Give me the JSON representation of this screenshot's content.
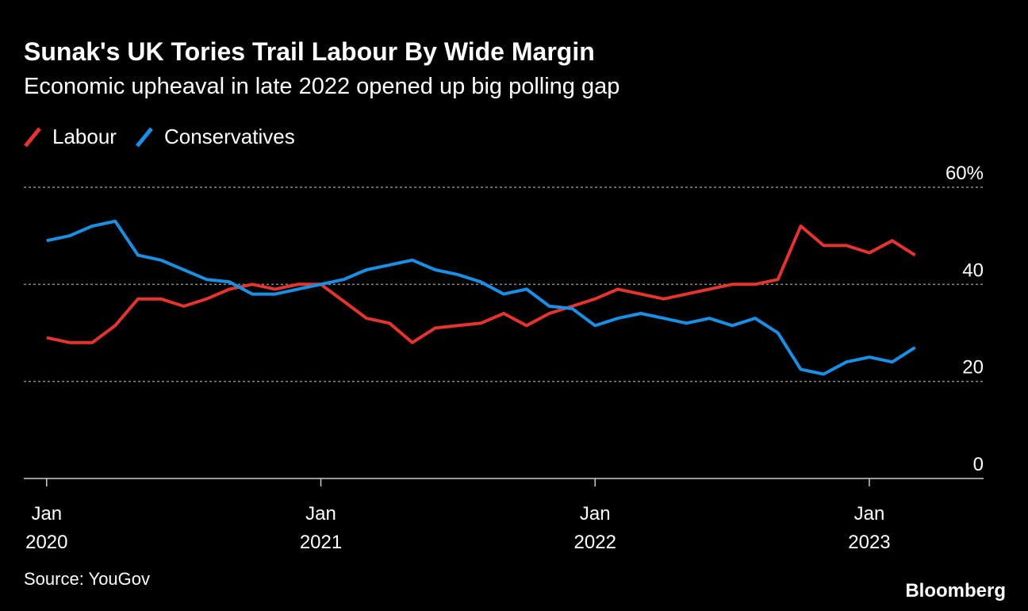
{
  "chart_data": {
    "type": "line",
    "title": "Sunak's UK Tories Trail Labour By Wide Margin",
    "subtitle": "Economic upheaval in late 2022 opened up big polling gap",
    "source": "Source: YouGov",
    "brand": "Bloomberg",
    "x": [
      "2020-01",
      "2020-02",
      "2020-03",
      "2020-04",
      "2020-05",
      "2020-06",
      "2020-07",
      "2020-08",
      "2020-09",
      "2020-10",
      "2020-11",
      "2020-12",
      "2021-01",
      "2021-02",
      "2021-03",
      "2021-04",
      "2021-05",
      "2021-06",
      "2021-07",
      "2021-08",
      "2021-09",
      "2021-10",
      "2021-11",
      "2021-12",
      "2022-01",
      "2022-02",
      "2022-03",
      "2022-04",
      "2022-05",
      "2022-06",
      "2022-07",
      "2022-08",
      "2022-09",
      "2022-10",
      "2022-11",
      "2022-12",
      "2023-01",
      "2023-02",
      "2023-03"
    ],
    "series": [
      {
        "name": "Labour",
        "color": "#e3342f",
        "values": [
          29,
          28,
          28,
          31.5,
          37,
          37,
          35.5,
          37,
          39,
          40,
          39,
          40,
          40,
          36.5,
          33,
          32,
          28,
          31,
          31.5,
          32,
          34,
          31.5,
          34,
          35.5,
          37,
          39,
          38,
          37,
          38,
          39,
          40,
          40,
          41,
          52,
          48,
          48,
          46.5,
          49,
          46
        ]
      },
      {
        "name": "Conservatives",
        "color": "#1a8fe3",
        "values": [
          49,
          50,
          52,
          53,
          46,
          45,
          43,
          41,
          40.5,
          38,
          38,
          39,
          40,
          41,
          43,
          44,
          45,
          43,
          42,
          40.5,
          38,
          39,
          35.5,
          35,
          31.5,
          33,
          34,
          33,
          32,
          33,
          31.5,
          33,
          30,
          22.5,
          21.5,
          24,
          25,
          24,
          27
        ]
      }
    ],
    "xlim": [
      "2019-12",
      "2023-06"
    ],
    "xticks": [
      {
        "value": "2020-01",
        "label": "Jan 2020"
      },
      {
        "value": "2021-01",
        "label": "Jan 2021"
      },
      {
        "value": "2022-01",
        "label": "Jan 2022"
      },
      {
        "value": "2023-01",
        "label": "Jan 2023"
      }
    ],
    "ylim": [
      0,
      60
    ],
    "yticks": [
      0,
      20,
      40,
      {
        "value": 60,
        "label": "60%"
      }
    ],
    "grid": true,
    "legend": "top-left"
  }
}
